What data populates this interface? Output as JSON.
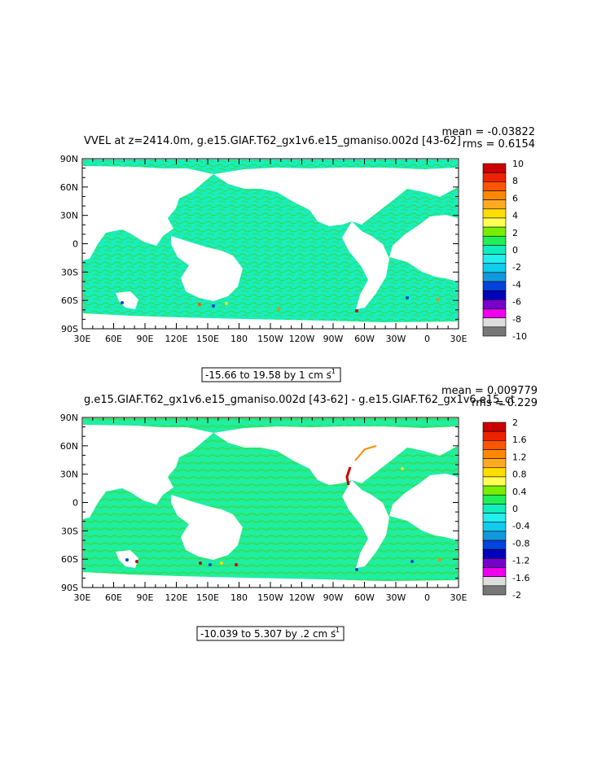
{
  "panels": [
    {
      "title": "VVEL at z=2414.0m, g.e15.GIAF.T62_gx1v6.e15_gmaniso.002d [43-62]",
      "mean_text": "mean = -0.03822",
      "rms_text": "rms = 0.6154",
      "range_text": "-15.66 to 19.58 by 1 cm s",
      "range_sup": "-1",
      "lat_ticks": [
        "90N",
        "60N",
        "30N",
        "0",
        "30S",
        "60S",
        "90S"
      ],
      "lon_ticks": [
        "30E",
        "60E",
        "90E",
        "120E",
        "150E",
        "180",
        "150W",
        "120W",
        "90W",
        "60W",
        "30W",
        "0",
        "30E"
      ],
      "colorbar_labels": [
        "10",
        "8",
        "6",
        "4",
        "2",
        "0",
        "-2",
        "-4",
        "-6",
        "-8",
        "-10"
      ]
    },
    {
      "title": "g.e15.GIAF.T62_gx1v6.e15_gmaniso.002d [43-62] - g.e15.GIAF.T62_gx1v6.e15_ct",
      "mean_text": "mean = 0.009779",
      "rms_text": "rms = 0.229",
      "range_text": "-10.039 to 5.307 by .2 cm s",
      "range_sup": "-1",
      "lat_ticks": [
        "90N",
        "60N",
        "30N",
        "0",
        "30S",
        "60S",
        "90S"
      ],
      "lon_ticks": [
        "30E",
        "60E",
        "90E",
        "120E",
        "150E",
        "180",
        "150W",
        "120W",
        "90W",
        "60W",
        "30W",
        "0",
        "30E"
      ],
      "colorbar_labels": [
        "2",
        "1.6",
        "1.2",
        "0.8",
        "0.4",
        "0",
        "-0.4",
        "-0.8",
        "-1.2",
        "-1.6",
        "-2"
      ]
    }
  ],
  "colors": {
    "ocean_main": "#18eec0",
    "ocean_pos": "#33dd55",
    "land": "#ffffff",
    "colorbar": [
      "#cc0000",
      "#ee2200",
      "#ff5500",
      "#ff8800",
      "#ffaa22",
      "#ffdd00",
      "#ffff55",
      "#77ee00",
      "#22ee55",
      "#11eebb",
      "#22eeee",
      "#11ccee",
      "#1199dd",
      "#0044dd",
      "#0000bb",
      "#7700cc",
      "#ee00ee",
      "#dddddd",
      "#777777"
    ]
  }
}
